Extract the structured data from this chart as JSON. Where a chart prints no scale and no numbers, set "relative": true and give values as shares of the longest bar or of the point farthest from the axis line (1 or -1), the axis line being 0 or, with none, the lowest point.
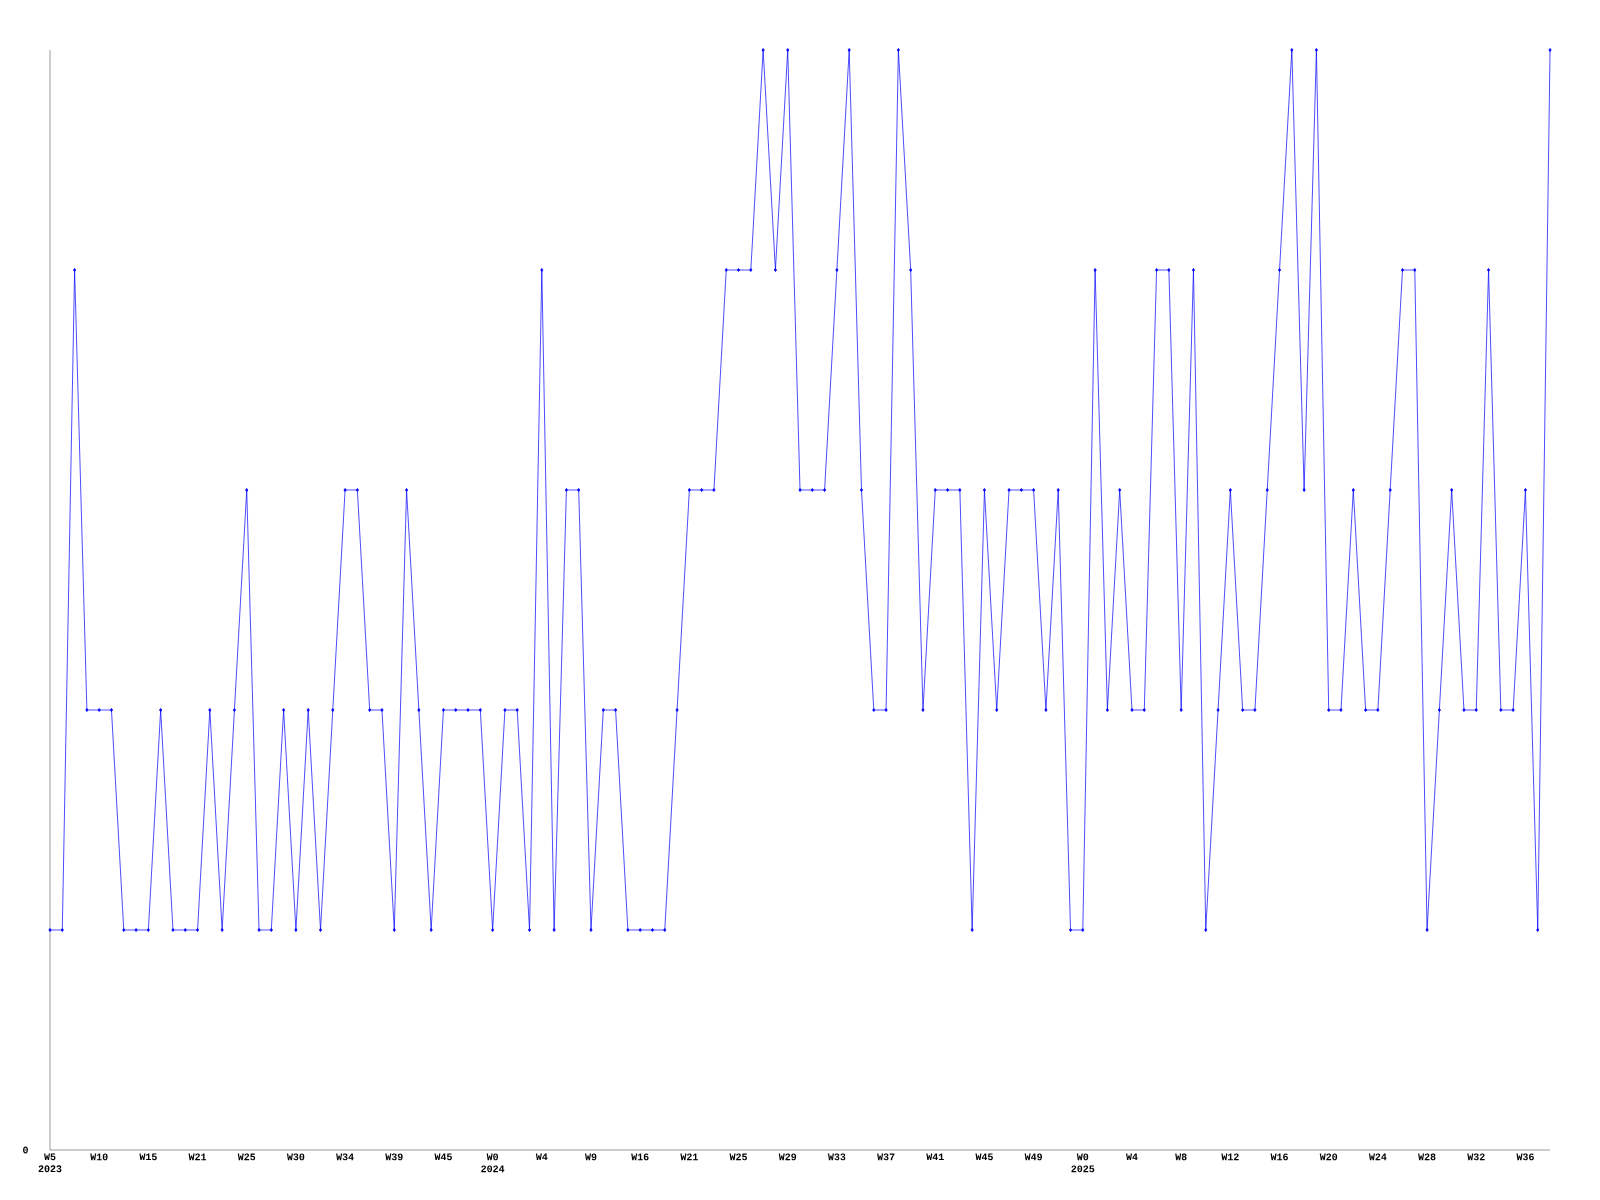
{
  "chart_data": {
    "type": "line",
    "relative": true,
    "color": "#0000ff",
    "marker": "diamond",
    "line_style": "solid",
    "categories": [
      "W5 2023",
      null,
      null,
      null,
      "W10",
      null,
      null,
      null,
      "W15",
      null,
      null,
      null,
      "W21",
      null,
      null,
      null,
      "W25",
      null,
      null,
      null,
      "W30",
      null,
      null,
      null,
      "W34",
      null,
      null,
      null,
      "W39",
      null,
      null,
      null,
      "W45",
      null,
      null,
      null,
      "W0 2024",
      null,
      null,
      null,
      "W4",
      null,
      null,
      null,
      "W9",
      null,
      null,
      null,
      "W16",
      null,
      null,
      null,
      "W21",
      null,
      null,
      null,
      "W25",
      null,
      null,
      null,
      "W29",
      null,
      null,
      null,
      "W33",
      null,
      null,
      null,
      "W37",
      null,
      null,
      null,
      "W41",
      null,
      null,
      null,
      "W45",
      null,
      null,
      null,
      "W49",
      null,
      null,
      null,
      "W0 2025",
      null,
      null,
      null,
      "W4",
      null,
      null,
      null,
      "W8",
      null,
      null,
      null,
      "W12",
      null,
      null,
      null,
      "W16",
      null,
      null,
      null,
      "W20",
      null,
      null,
      null,
      "W24",
      null,
      null,
      null,
      "W28",
      null,
      null,
      null,
      "W32",
      null,
      null,
      null,
      "W36",
      null,
      null
    ],
    "values": [
      0.2,
      0.2,
      0.8,
      0.4,
      0.4,
      0.4,
      0.2,
      0.2,
      0.2,
      0.4,
      0.2,
      0.2,
      0.2,
      0.4,
      0.2,
      0.4,
      0.6,
      0.2,
      0.2,
      0.4,
      0.2,
      0.4,
      0.2,
      0.4,
      0.6,
      0.6,
      0.4,
      0.4,
      0.2,
      0.6,
      0.4,
      0.2,
      0.4,
      0.4,
      0.4,
      0.4,
      0.2,
      0.4,
      0.4,
      0.2,
      0.8,
      0.2,
      0.6,
      0.6,
      0.2,
      0.4,
      0.4,
      0.2,
      0.2,
      0.2,
      0.2,
      0.4,
      0.6,
      0.6,
      0.6,
      0.8,
      0.8,
      0.8,
      1,
      0.8,
      1,
      0.6,
      0.6,
      0.6,
      0.8,
      1,
      0.6,
      0.4,
      0.4,
      1,
      0.8,
      0.4,
      0.6,
      0.6,
      0.6,
      0.2,
      0.6,
      0.4,
      0.6,
      0.6,
      0.6,
      0.4,
      0.6,
      0.2,
      0.2,
      0.8,
      0.4,
      0.6,
      0.4,
      0.4,
      0.8,
      0.8,
      0.4,
      0.8,
      0.2,
      0.4,
      0.6,
      0.4,
      0.4,
      0.6,
      0.8,
      1,
      0.6,
      1,
      0.4,
      0.4,
      0.6,
      0.4,
      0.4,
      0.6,
      0.8,
      0.8,
      0.2,
      0.4,
      0.6,
      0.4,
      0.4,
      0.8,
      0.4,
      0.4,
      0.6,
      0.2,
      1
    ],
    "annotations": [
      "0"
    ]
  }
}
